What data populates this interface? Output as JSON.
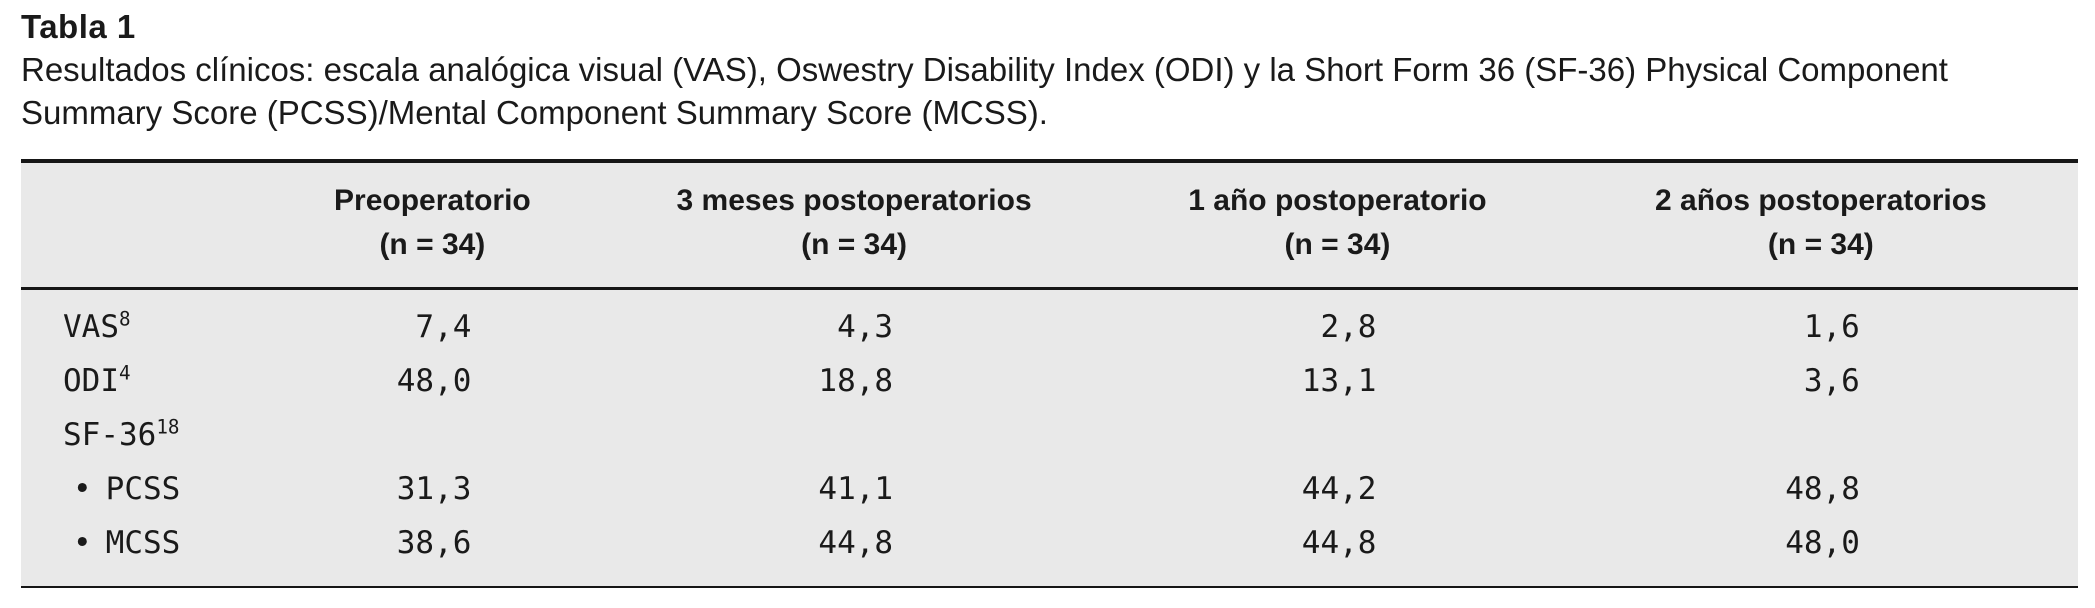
{
  "caption": {
    "label": "Tabla 1",
    "text": "Resultados clínicos: escala analógica visual (VAS), Oswestry Disability Index (ODI) y la Short Form 36 (SF-36) Physical Component Summary Score (PCSS)/Mental Component Summary Score (MCSS)."
  },
  "table": {
    "columns": [
      {
        "label": "Preoperatorio",
        "n": "(n = 34)"
      },
      {
        "label": "3 meses postoperatorios",
        "n": "(n = 34)"
      },
      {
        "label": "1 año postoperatorio",
        "n": "(n = 34)"
      },
      {
        "label": "2 años postoperatorios",
        "n": "(n = 34)"
      }
    ],
    "rows": [
      {
        "bullet": "",
        "label": "VAS",
        "sup": "8",
        "values": [
          "7,4",
          "4,3",
          "2,8",
          "1,6"
        ]
      },
      {
        "bullet": "",
        "label": "ODI",
        "sup": "4",
        "values": [
          "48,0",
          "18,8",
          "13,1",
          "3,6"
        ]
      },
      {
        "bullet": "",
        "label": "SF-36",
        "sup": "18",
        "values": [
          "",
          "",
          "",
          ""
        ]
      },
      {
        "bullet": "•",
        "label": "PCSS",
        "sup": "",
        "values": [
          "31,3",
          "41,1",
          "44,2",
          "48,8"
        ]
      },
      {
        "bullet": "•",
        "label": "MCSS",
        "sup": "",
        "values": [
          "38,6",
          "44,8",
          "44,8",
          "48,0"
        ]
      }
    ]
  },
  "colors": {
    "table_background": "#e9e9e9",
    "rule": "#161616",
    "text": "#1a1a1a",
    "page_background": "#ffffff"
  }
}
